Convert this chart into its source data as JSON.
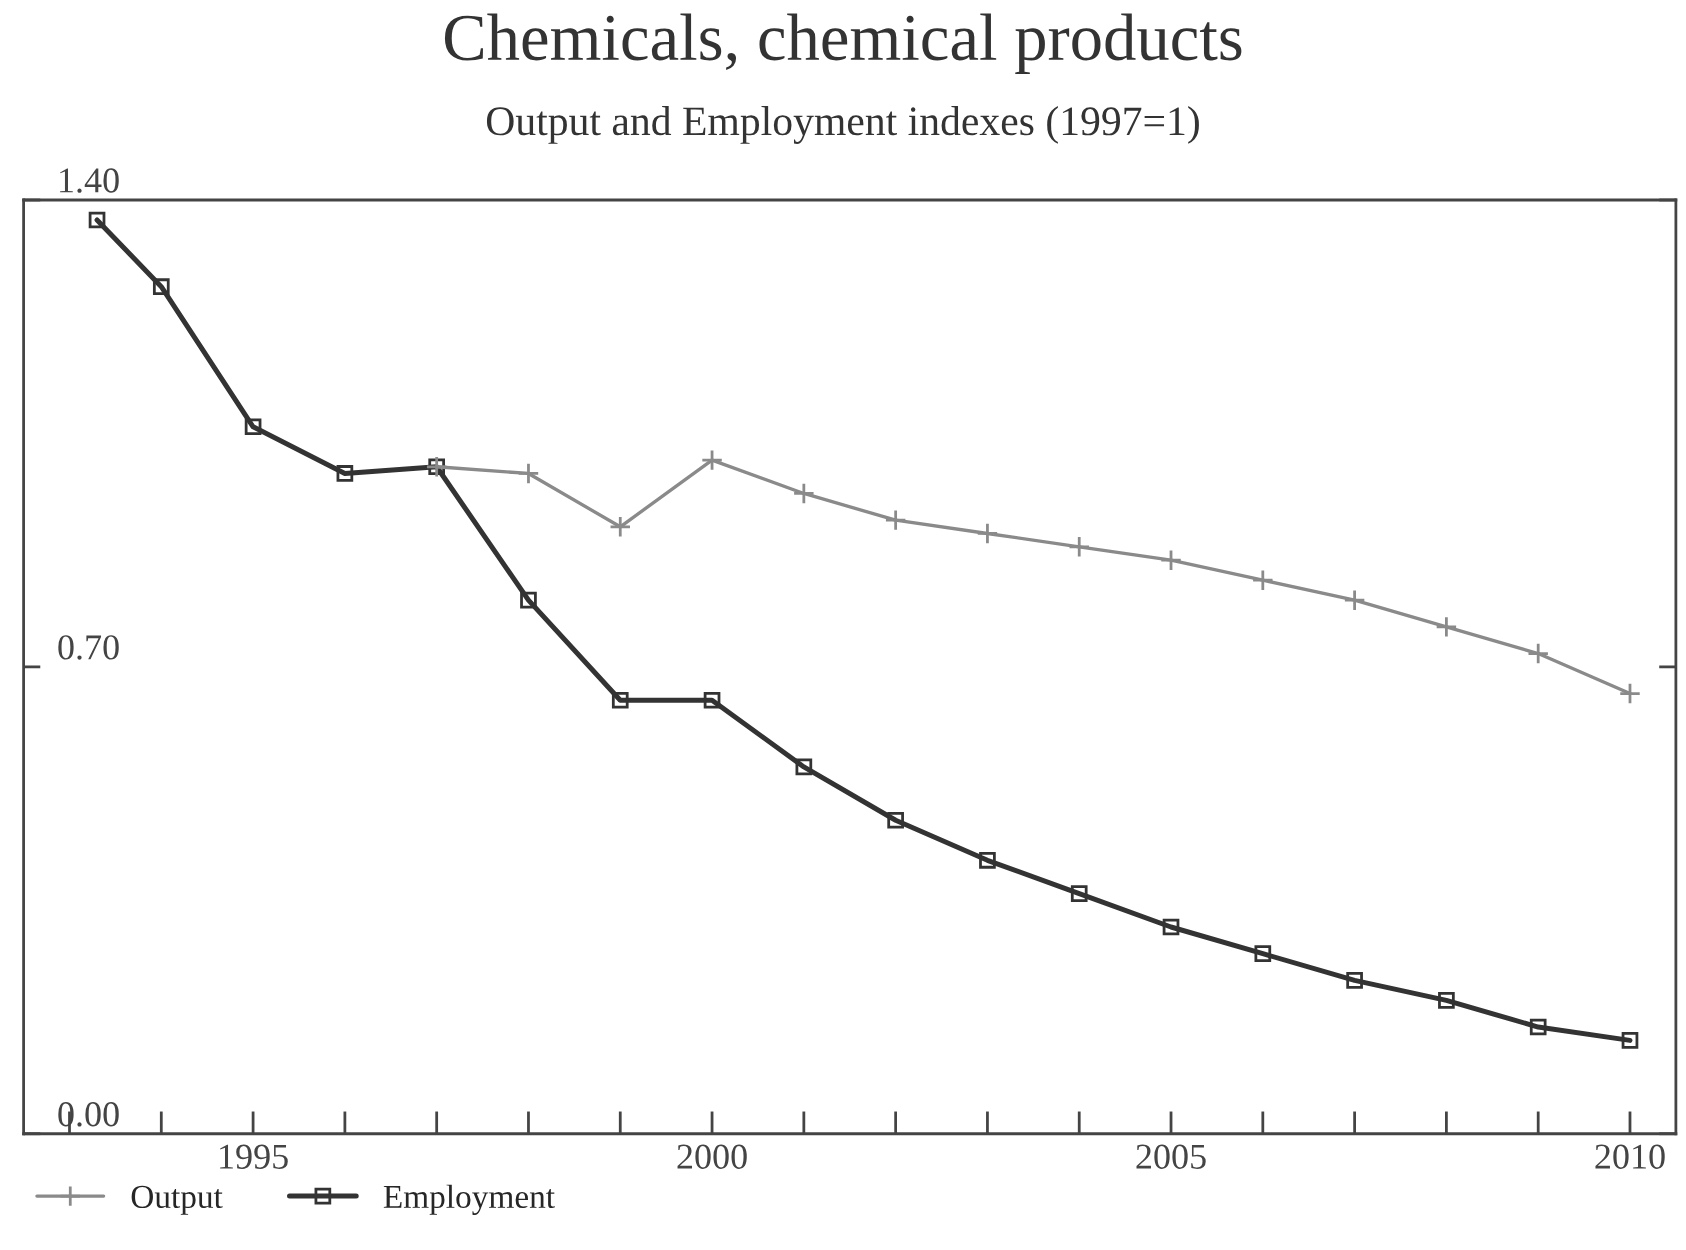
{
  "chart_data": {
    "type": "line",
    "title": "Chemicals, chemical products",
    "subtitle": "Output and Employment indexes (1997=1)",
    "x": [
      1993.3,
      1994,
      1995,
      1996,
      1997,
      1998,
      1999,
      2000,
      2001,
      2002,
      2003,
      2004,
      2005,
      2006,
      2007,
      2008,
      2009,
      2010
    ],
    "series": [
      {
        "name": "Output",
        "color": "#8a8a8a",
        "marker": "cross",
        "values": [
          null,
          null,
          null,
          null,
          1.0,
          0.99,
          0.91,
          1.01,
          0.96,
          0.92,
          0.9,
          0.88,
          0.86,
          0.83,
          0.8,
          0.76,
          0.72,
          0.66
        ]
      },
      {
        "name": "Employment",
        "color": "#333333",
        "marker": "square",
        "values": [
          1.37,
          1.27,
          1.06,
          0.99,
          1.0,
          0.8,
          0.65,
          0.65,
          0.55,
          0.47,
          0.41,
          0.36,
          0.31,
          0.27,
          0.23,
          0.2,
          0.16,
          0.14
        ]
      }
    ],
    "xlim": [
      1992.5,
      2010.5
    ],
    "xticks": [
      {
        "value": 1993,
        "label": null
      },
      {
        "value": 1994,
        "label": null
      },
      1995,
      {
        "value": 1996,
        "label": null
      },
      {
        "value": 1997,
        "label": null
      },
      {
        "value": 1998,
        "label": null
      },
      {
        "value": 1999,
        "label": null
      },
      2000,
      {
        "value": 2001,
        "label": null
      },
      {
        "value": 2002,
        "label": null
      },
      {
        "value": 2003,
        "label": null
      },
      {
        "value": 2004,
        "label": null
      },
      2005,
      {
        "value": 2006,
        "label": null
      },
      {
        "value": 2007,
        "label": null
      },
      {
        "value": 2008,
        "label": null
      },
      {
        "value": 2009,
        "label": null
      },
      2010
    ],
    "ylim": [
      0,
      1.4
    ],
    "yticks": [
      {
        "value": 0,
        "label": "0.00"
      },
      {
        "value": 0.7,
        "label": "0.70"
      },
      {
        "value": 1.4,
        "label": "1.40"
      }
    ],
    "grid": false,
    "legend": "bottom left",
    "line_style": "solid"
  }
}
